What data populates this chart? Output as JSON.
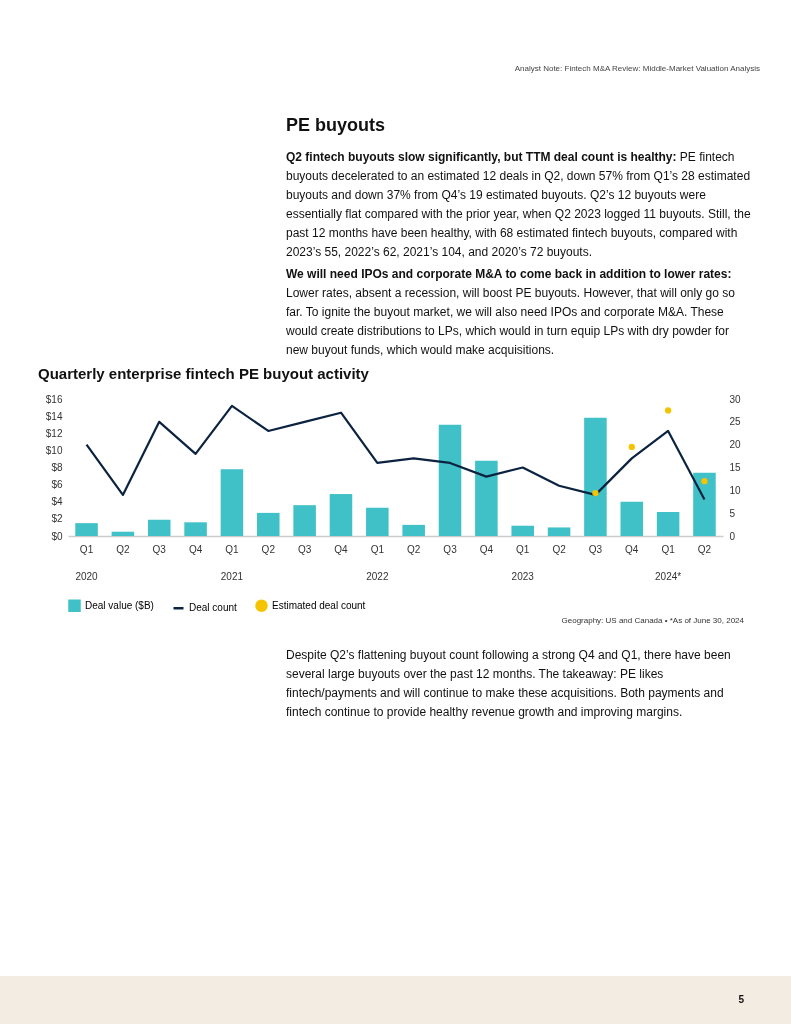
{
  "chart_data": {
    "type": "bar",
    "title": "Quarterly enterprise fintech PE buyout activity",
    "categories": [
      "Q1\n2020",
      "Q2",
      "Q3",
      "Q4",
      "Q1\n2021",
      "Q2",
      "Q3",
      "Q4",
      "Q1\n2022",
      "Q2",
      "Q3",
      "Q4",
      "Q1\n2023",
      "Q2",
      "Q3",
      "Q4",
      "Q1\n2024*",
      "Q2"
    ],
    "series": [
      {
        "name": "Deal value ($B)",
        "color": "#40c1c8",
        "values": [
          1.5,
          0.5,
          1.9,
          1.6,
          7.8,
          2.7,
          3.6,
          4.9,
          3.3,
          1.3,
          13.0,
          8.8,
          1.2,
          1.0,
          13.8,
          4.0,
          2.8,
          7.4
        ]
      },
      {
        "name": "Deal count",
        "type": "line",
        "axis": "y2",
        "color": "#0b2341",
        "values": [
          20,
          9,
          25,
          18,
          28.5,
          23,
          25,
          27,
          16,
          17,
          16,
          13,
          15,
          11,
          9,
          17,
          23,
          8
        ]
      },
      {
        "name": "Estimated deal count",
        "type": "scatter",
        "axis": "y2",
        "marker": "circle",
        "color": "#f5c400",
        "values": [
          null,
          null,
          null,
          null,
          null,
          null,
          null,
          null,
          null,
          null,
          null,
          null,
          null,
          null,
          9.4,
          19.5,
          27.5,
          12
        ]
      }
    ],
    "ylim": [
      0,
      16
    ],
    "yticks": [
      {
        "value": 0,
        "label": "$0"
      },
      {
        "value": 2,
        "label": "$2"
      },
      {
        "value": 4,
        "label": "$4"
      },
      {
        "value": 6,
        "label": "$6"
      },
      {
        "value": 8,
        "label": "$8"
      },
      {
        "value": 10,
        "label": "$10"
      },
      {
        "value": 12,
        "label": "$12"
      },
      {
        "value": 14,
        "label": "$14"
      },
      {
        "value": 16,
        "label": "$16"
      }
    ],
    "y2lim": [
      0,
      30
    ],
    "y2ticks": [
      0,
      5,
      10,
      15,
      20,
      25,
      30
    ],
    "grid": false,
    "legend": "bottom",
    "annotations": [
      "Analyst Note: Fintech M&A Review: Middle-Market Valuation Analysis",
      "PE buyouts",
      "Q2 fintech buyouts slow significantly, but TTM deal count is healthy:",
      "PE fintech buyouts decelerated to an estimated 12 deals in Q2, down 57% from Q1’s 28 estimated buyouts and down 37% from Q4’s 19 estimated buyouts. Q2’s 12 buyouts were essentially flat compared with the prior year, when Q2 2023 logged 11 buyouts. Still, the past 12 months have been healthy, with 68 estimated fintech buyouts, compared with 2023’s 55, 2022’s 62, 2021’s 104, and 2020’s 72 buyouts.",
      "We will need IPOs and corporate M&A to come back in addition to lower rates:",
      "Lower rates, absent a recession, will boost PE buyouts. However, that will only go so far. To ignite the buyout market, we will also need IPOs and corporate M&A. These would create distributions to LPs, which would in turn equip LPs with dry powder for new buyout funds, which would make acquisitions.",
      "Geography: US and Canada • *As of June 30, 2024",
      "Despite Q2’s flattening buyout count following a strong Q4 and Q1, there have been several large buyouts over the past 12 months. The takeaway: PE likes fintech/payments and will continue to make these acquisitions. Both payments and fintech continue to provide healthy revenue growth and improving margins.",
      "5"
    ]
  }
}
